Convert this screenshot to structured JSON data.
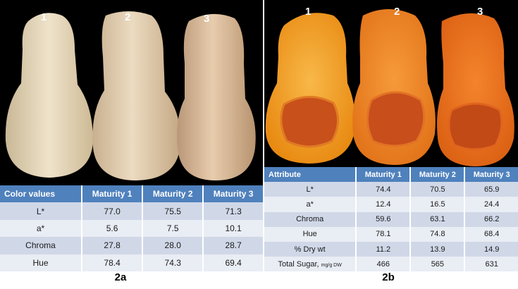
{
  "panel_a": {
    "labels": [
      "1",
      "2",
      "3"
    ],
    "table": {
      "headers": [
        "Color values",
        "Maturity 1",
        "Maturity 2",
        "Maturity 3"
      ],
      "rows": [
        [
          "L*",
          "77.0",
          "75.5",
          "71.3"
        ],
        [
          "a*",
          "5.6",
          "7.5",
          "10.1"
        ],
        [
          "Chroma",
          "27.8",
          "28.0",
          "28.7"
        ],
        [
          "Hue",
          "78.4",
          "74.3",
          "69.4"
        ]
      ]
    },
    "caption": "2a"
  },
  "panel_b": {
    "labels": [
      "1",
      "2",
      "3"
    ],
    "table": {
      "headers": [
        "Attribute",
        "Maturity 1",
        "Maturity 2",
        "Maturity 3"
      ],
      "rows": [
        [
          "L*",
          "74.4",
          "70.5",
          "65.9"
        ],
        [
          "a*",
          "12.4",
          "16.5",
          "24.4"
        ],
        [
          "Chroma",
          "59.6",
          "63.1",
          "66.2"
        ],
        [
          "Hue",
          "78.1",
          "74.8",
          "68.4"
        ],
        [
          "% Dry wt",
          "11.2",
          "13.9",
          "14.9"
        ],
        [
          "Total Sugar,",
          "466",
          "565",
          "631"
        ]
      ],
      "sugar_unit": "mg/g DW"
    },
    "caption": "2b"
  },
  "colors": {
    "header_blue": "#4f81bd",
    "row_dark": "#d0d8e8",
    "row_light": "#e9edf4",
    "squash_skin": [
      "#ede0c6",
      "#ead6b9",
      "#e4c6a6"
    ],
    "squash_flesh": [
      "#f6a02a",
      "#f28a22",
      "#ec7418"
    ]
  }
}
